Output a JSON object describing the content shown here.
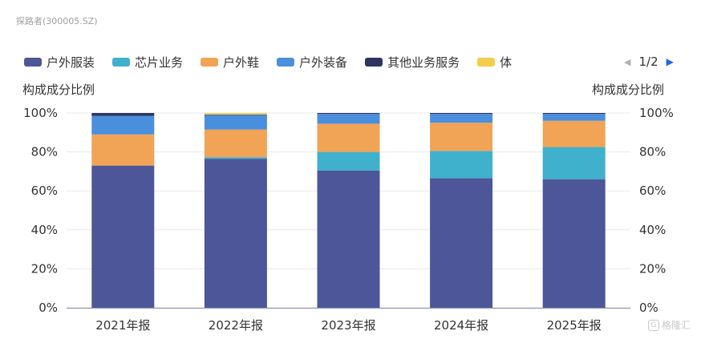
{
  "source": "探路者(300005.SZ)",
  "legend": [
    {
      "name": "户外服装",
      "color": "#4d5699"
    },
    {
      "name": "芯片业务",
      "color": "#3fb1cc"
    },
    {
      "name": "户外鞋",
      "color": "#f1a356"
    },
    {
      "name": "户外装备",
      "color": "#4a8fdd"
    },
    {
      "name": "其他业务服务",
      "color": "#2d3561"
    },
    {
      "name": "体",
      "color": "#f3cd4c"
    }
  ],
  "pager": {
    "text": "1/2"
  },
  "logo": {
    "text": "格隆汇"
  },
  "chart_data": {
    "type": "bar",
    "stacked": true,
    "categories": [
      "2021年报",
      "2022年报",
      "2023年报",
      "2024年报",
      "2025年报"
    ],
    "ylabel_left": "构成成分比例",
    "ylabel_right": "构成成分比例",
    "ylim": [
      0,
      100
    ],
    "yticks": [
      "0%",
      "20%",
      "40%",
      "60%",
      "80%",
      "100%"
    ],
    "series": [
      {
        "name": "户外服装",
        "color": "#4d5699",
        "values": [
          73,
          76.5,
          70.5,
          66.5,
          66
        ]
      },
      {
        "name": "芯片业务",
        "color": "#3fb1cc",
        "values": [
          0,
          0.8,
          9.5,
          14,
          16.5
        ]
      },
      {
        "name": "户外鞋",
        "color": "#f1a356",
        "values": [
          16,
          14.2,
          14.5,
          14.5,
          13.5
        ]
      },
      {
        "name": "户外装备",
        "color": "#4a8fdd",
        "values": [
          9.5,
          7.5,
          5,
          4.5,
          3.5
        ]
      },
      {
        "name": "其他业务服务",
        "color": "#2d3561",
        "values": [
          1.5,
          0.2,
          0.5,
          0.5,
          0.5
        ]
      },
      {
        "name": "体",
        "color": "#f3cd4c",
        "values": [
          0,
          0.8,
          0,
          0,
          0
        ]
      }
    ]
  }
}
